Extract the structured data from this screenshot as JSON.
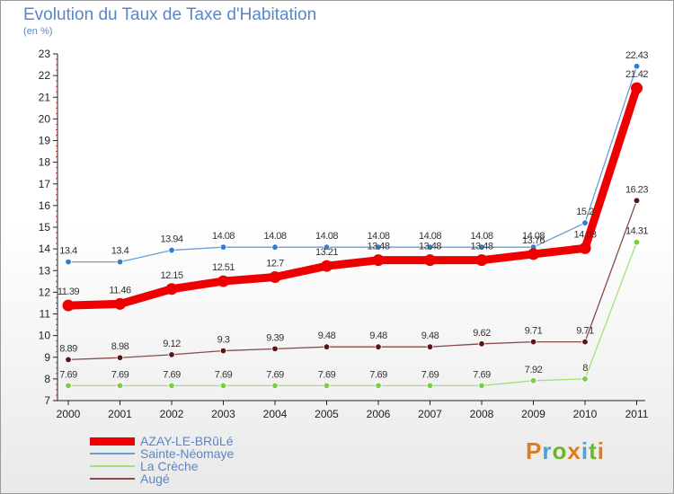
{
  "title": "Evolution du Taux de Taxe d'Habitation",
  "subtitle": "(en %)",
  "logo": {
    "text": "Proxiti",
    "colors": [
      "#e07b1e",
      "#4aa3d8",
      "#6fb52c",
      "#e07b1e",
      "#4aa3d8",
      "#6fb52c",
      "#e07b1e"
    ]
  },
  "chart_data": {
    "type": "line",
    "x": [
      "2000",
      "2001",
      "2002",
      "2003",
      "2004",
      "2005",
      "2006",
      "2007",
      "2008",
      "2009",
      "2010",
      "2011"
    ],
    "ylim": [
      7,
      23
    ],
    "yticks": [
      "7",
      "8",
      "9",
      "10",
      "11",
      "12",
      "13",
      "14",
      "15",
      "16",
      "17",
      "18",
      "19",
      "20",
      "21",
      "22",
      "23"
    ],
    "grid": false,
    "legend_position": "bottom-left",
    "series": [
      {
        "name": "AZAY-LE-BRûLé",
        "color": "#ee0000",
        "marker": "#ee0000",
        "values": [
          11.39,
          11.46,
          12.15,
          12.51,
          12.7,
          13.21,
          13.48,
          13.48,
          13.48,
          13.76,
          14.03,
          21.42
        ],
        "labels": [
          "11.39",
          "11.46",
          "12.15",
          "12.51",
          "12.7",
          "13.21",
          "13.48",
          "13.48",
          "13.48",
          "13.76",
          "14.03",
          "21.42"
        ]
      },
      {
        "name": "Sainte-Néomaye",
        "color": "#6a9ed6",
        "marker": "#2f7fd0",
        "values": [
          13.4,
          13.4,
          13.94,
          14.08,
          14.08,
          14.08,
          14.08,
          14.08,
          14.08,
          14.08,
          15.2,
          22.43
        ],
        "labels": [
          "13.4",
          "13.4",
          "13.94",
          "14.08",
          "14.08",
          "14.08",
          "14.08",
          "14.08",
          "14.08",
          "14.08",
          "15.2",
          "22.43"
        ]
      },
      {
        "name": "La Crèche",
        "color": "#a6e07a",
        "marker": "#78d040",
        "values": [
          7.69,
          7.69,
          7.69,
          7.69,
          7.69,
          7.69,
          7.69,
          7.69,
          7.69,
          7.92,
          8.0,
          14.31
        ],
        "labels": [
          "7.69",
          "7.69",
          "7.69",
          "7.69",
          "7.69",
          "7.69",
          "7.69",
          "7.69",
          "7.69",
          "7.92",
          "8",
          "14.31"
        ]
      },
      {
        "name": "Augé",
        "color": "#8a4a4a",
        "marker": "#5a1515",
        "values": [
          8.89,
          8.98,
          9.12,
          9.3,
          9.39,
          9.48,
          9.48,
          9.48,
          9.62,
          9.71,
          9.71,
          16.23
        ],
        "labels": [
          "8.89",
          "8.98",
          "9.12",
          "9.3",
          "9.39",
          "9.48",
          "9.48",
          "9.48",
          "9.62",
          "9.71",
          "9.71",
          "16.23"
        ]
      }
    ]
  }
}
